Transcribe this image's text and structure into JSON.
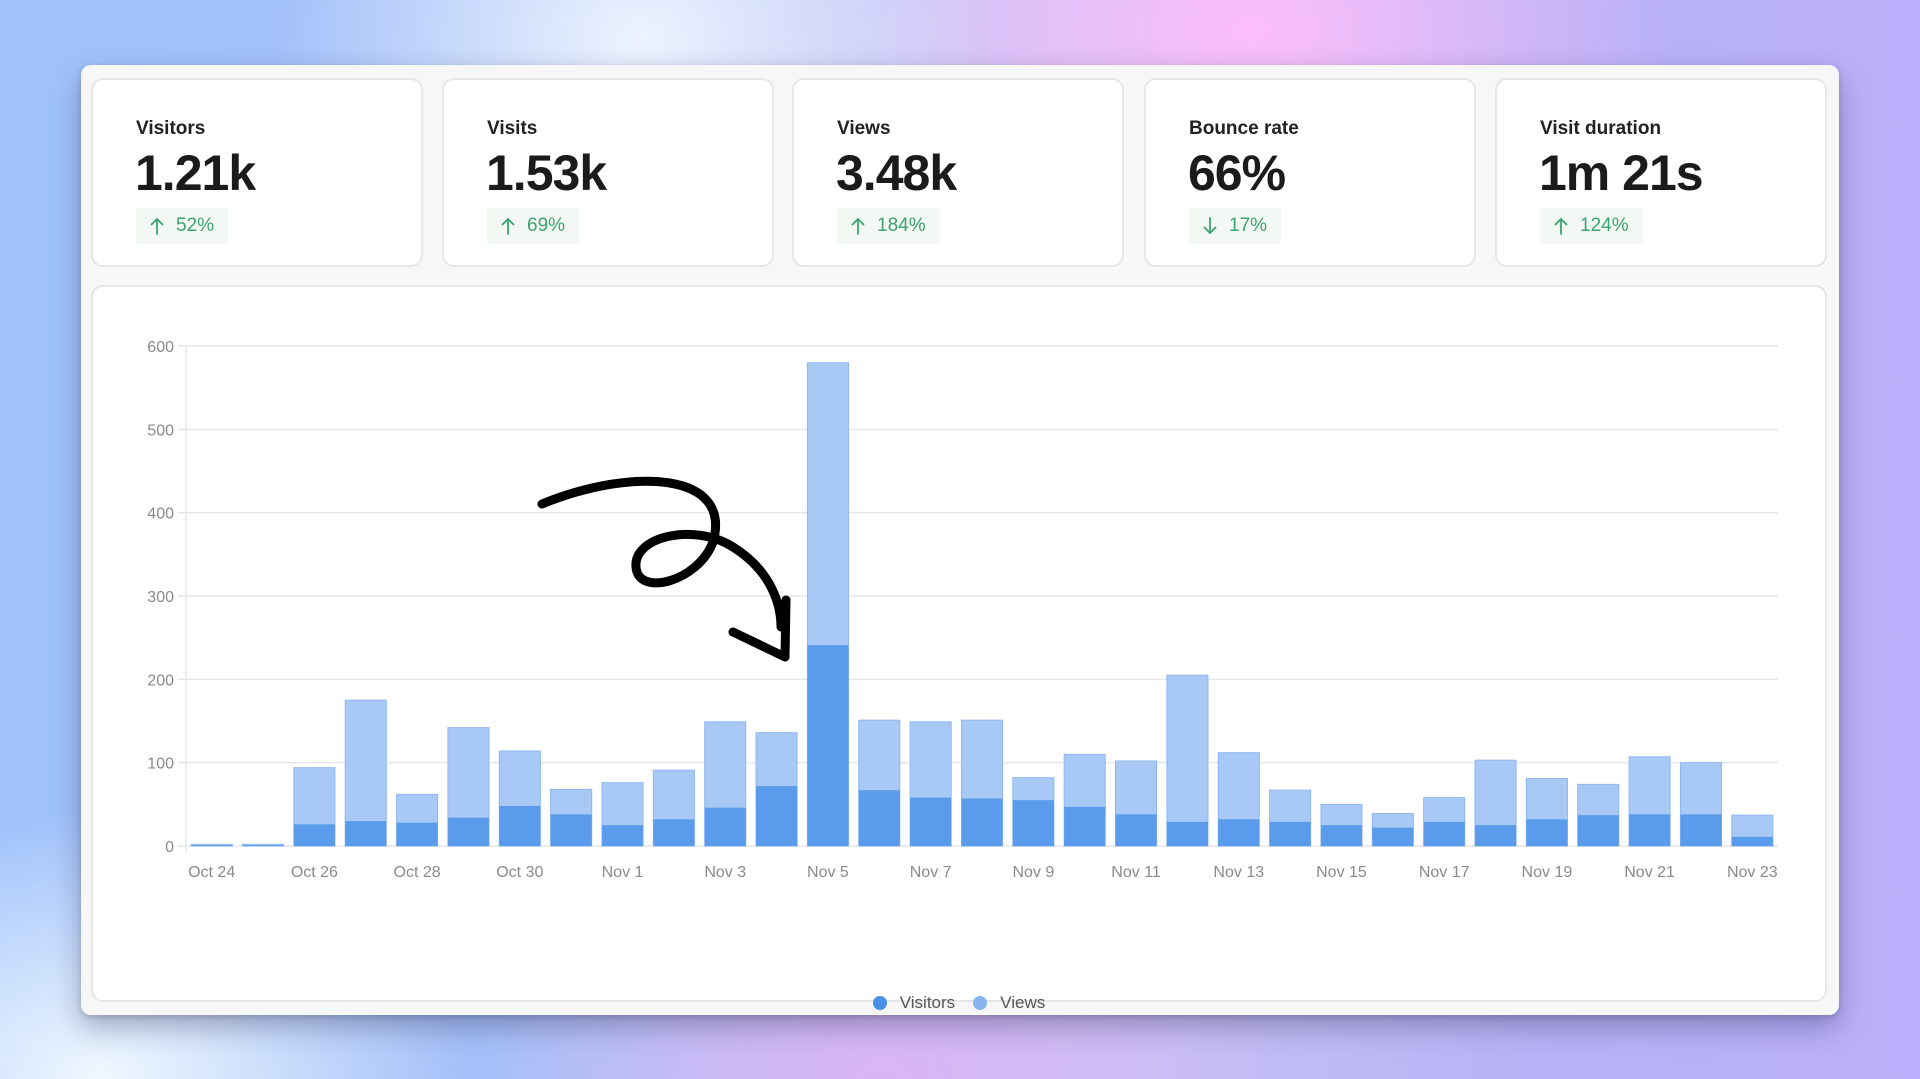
{
  "stats": [
    {
      "label": "Visitors",
      "value": "1.21k",
      "change": "52%",
      "direction": "up"
    },
    {
      "label": "Visits",
      "value": "1.53k",
      "change": "69%",
      "direction": "up"
    },
    {
      "label": "Views",
      "value": "3.48k",
      "change": "184%",
      "direction": "up"
    },
    {
      "label": "Bounce rate",
      "value": "66%",
      "change": "17%",
      "direction": "down"
    },
    {
      "label": "Visit duration",
      "value": "1m 21s",
      "change": "124%",
      "direction": "up"
    }
  ],
  "colors": {
    "visitors": "#5a9ceb",
    "views": "#a8c9f5",
    "positive": "#3aa370",
    "grid": "#e6e6e8",
    "axis_text": "#8a8a8e"
  },
  "legend": [
    {
      "label": "Visitors",
      "color": "#4a8fe7"
    },
    {
      "label": "Views",
      "color": "#86b5f2"
    }
  ],
  "annotation": {
    "type": "hand-drawn-arrow",
    "points_to": "Nov 5"
  },
  "chart_data": {
    "type": "bar",
    "stacked": "overlay",
    "title": "",
    "xlabel": "",
    "ylabel": "",
    "ylim": [
      0,
      600
    ],
    "yticks": [
      0,
      100,
      200,
      300,
      400,
      500,
      600
    ],
    "grid": true,
    "legend_position": "bottom-center",
    "categories": [
      "Oct 24",
      "Oct 25",
      "Oct 26",
      "Oct 27",
      "Oct 28",
      "Oct 29",
      "Oct 30",
      "Oct 31",
      "Nov 1",
      "Nov 2",
      "Nov 3",
      "Nov 4",
      "Nov 5",
      "Nov 6",
      "Nov 7",
      "Nov 8",
      "Nov 9",
      "Nov 10",
      "Nov 11",
      "Nov 12",
      "Nov 13",
      "Nov 14",
      "Nov 15",
      "Nov 16",
      "Nov 17",
      "Nov 18",
      "Nov 19",
      "Nov 20",
      "Nov 21",
      "Nov 22",
      "Nov 23"
    ],
    "xtick_labels": [
      "Oct 24",
      "Oct 26",
      "Oct 28",
      "Oct 30",
      "Nov 1",
      "Nov 3",
      "Nov 5",
      "Nov 7",
      "Nov 9",
      "Nov 11",
      "Nov 13",
      "Nov 15",
      "Nov 17",
      "Nov 19",
      "Nov 21",
      "Nov 23"
    ],
    "series": [
      {
        "name": "Visitors",
        "values": [
          1,
          1,
          26,
          30,
          28,
          34,
          48,
          38,
          25,
          32,
          46,
          72,
          241,
          67,
          58,
          57,
          55,
          47,
          38,
          29,
          32,
          29,
          25,
          22,
          29,
          25,
          32,
          37,
          38,
          38,
          11
        ]
      },
      {
        "name": "Views",
        "values": [
          2,
          2,
          94,
          175,
          62,
          142,
          114,
          68,
          76,
          91,
          149,
          136,
          580,
          151,
          149,
          151,
          82,
          110,
          102,
          205,
          112,
          67,
          50,
          39,
          58,
          103,
          81,
          74,
          107,
          100,
          37
        ]
      }
    ]
  }
}
